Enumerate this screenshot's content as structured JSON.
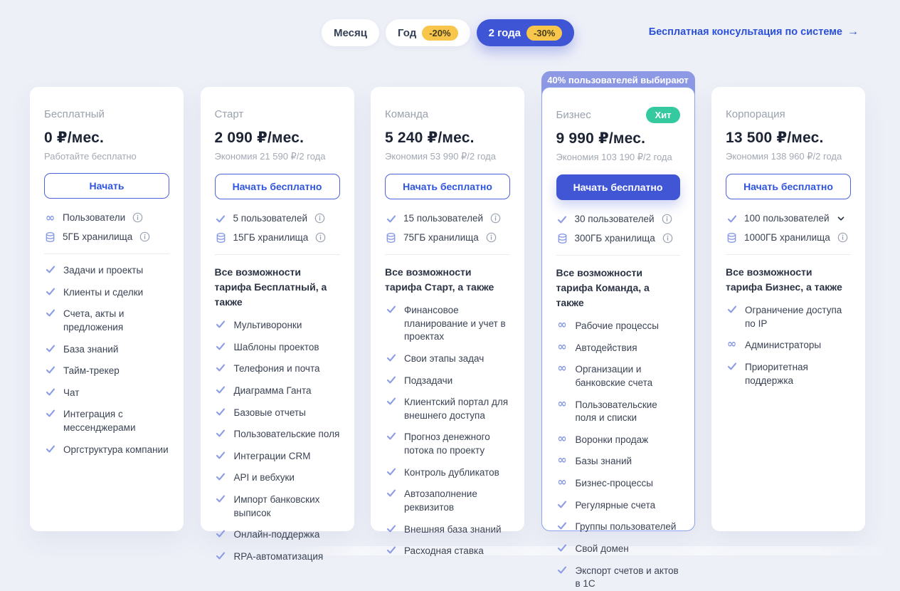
{
  "colors": {
    "background": "#eef0f8",
    "accent_blue": "#3e55d6",
    "link_blue": "#2b50d9",
    "badge_yellow": "#f7c64a",
    "hit_green": "#35c9a0",
    "banner_indigo": "#8d99e4",
    "icon_periwinkle": "#8b9ce5"
  },
  "billing_toggle": {
    "options": [
      {
        "key": "month",
        "label": "Месяц",
        "badge": null,
        "active": false
      },
      {
        "key": "year",
        "label": "Год",
        "badge": "-20%",
        "active": false
      },
      {
        "key": "two-years",
        "label": "2 года",
        "badge": "-30%",
        "active": true
      }
    ]
  },
  "consult_link": {
    "label": "Бесплатная консультация по системе",
    "arrow": "→"
  },
  "plans": [
    {
      "key": "free",
      "name": "Бесплатный",
      "price": "0 ₽/мес.",
      "subtitle": "Работайте бесплатно",
      "button": {
        "label": "Начать",
        "variant": "outline"
      },
      "popular": false,
      "banner": null,
      "hit_badge": null,
      "resources": [
        {
          "icon": "infinity",
          "label": "Пользователи",
          "trailing": "info"
        },
        {
          "icon": "database",
          "label": "5ГБ хранилища",
          "trailing": "info"
        }
      ],
      "features_header": null,
      "features": [
        {
          "icon": "check",
          "label": "Задачи и проекты"
        },
        {
          "icon": "check",
          "label": "Клиенты и сделки"
        },
        {
          "icon": "check",
          "label": "Счета, акты и предложения"
        },
        {
          "icon": "check",
          "label": "База знаний"
        },
        {
          "icon": "check",
          "label": "Тайм-трекер"
        },
        {
          "icon": "check",
          "label": "Чат"
        },
        {
          "icon": "check",
          "label": "Интеграция с мессенджерами"
        },
        {
          "icon": "check",
          "label": "Оргструктура компании"
        }
      ]
    },
    {
      "key": "start",
      "name": "Старт",
      "price": "2 090 ₽/мес.",
      "subtitle": "Экономия 21 590 ₽/2 года",
      "button": {
        "label": "Начать бесплатно",
        "variant": "outline"
      },
      "popular": false,
      "banner": null,
      "hit_badge": null,
      "resources": [
        {
          "icon": "check",
          "label": "5 пользователей",
          "trailing": "info"
        },
        {
          "icon": "database",
          "label": "15ГБ хранилища",
          "trailing": "info"
        }
      ],
      "features_header": "Все возможности тарифа Бесплатный, а также",
      "features": [
        {
          "icon": "check",
          "label": "Мультиворонки"
        },
        {
          "icon": "check",
          "label": "Шаблоны проектов"
        },
        {
          "icon": "check",
          "label": "Телефония и почта"
        },
        {
          "icon": "check",
          "label": "Диаграмма Ганта"
        },
        {
          "icon": "check",
          "label": "Базовые отчеты"
        },
        {
          "icon": "check",
          "label": "Пользовательские поля"
        },
        {
          "icon": "check",
          "label": "Интеграции CRM"
        },
        {
          "icon": "check",
          "label": "API и вебхуки"
        },
        {
          "icon": "check",
          "label": "Импорт банковских выписок"
        },
        {
          "icon": "check",
          "label": "Онлайн-поддержка"
        },
        {
          "icon": "check",
          "label": "RPA-автоматизация"
        }
      ]
    },
    {
      "key": "team",
      "name": "Команда",
      "price": "5 240 ₽/мес.",
      "subtitle": "Экономия 53 990 ₽/2 года",
      "button": {
        "label": "Начать бесплатно",
        "variant": "outline"
      },
      "popular": false,
      "banner": null,
      "hit_badge": null,
      "resources": [
        {
          "icon": "check",
          "label": "15 пользователей",
          "trailing": "info"
        },
        {
          "icon": "database",
          "label": "75ГБ хранилища",
          "trailing": "info"
        }
      ],
      "features_header": "Все возможности тарифа Старт, а также",
      "features": [
        {
          "icon": "check",
          "label": "Финансовое планирование и учет в проектах"
        },
        {
          "icon": "check",
          "label": "Свои этапы задач"
        },
        {
          "icon": "check",
          "label": "Подзадачи"
        },
        {
          "icon": "check",
          "label": "Клиентский портал для внешнего доступа"
        },
        {
          "icon": "check",
          "label": "Прогноз денежного потока по проекту"
        },
        {
          "icon": "check",
          "label": "Контроль дубликатов"
        },
        {
          "icon": "check",
          "label": "Автозаполнение реквизитов"
        },
        {
          "icon": "check",
          "label": "Внешняя база знаний"
        },
        {
          "icon": "check",
          "label": "Расходная ставка"
        }
      ]
    },
    {
      "key": "business",
      "name": "Бизнес",
      "price": "9 990 ₽/мес.",
      "subtitle": "Экономия 103 190 ₽/2 года",
      "button": {
        "label": "Начать бесплатно",
        "variant": "solid"
      },
      "popular": true,
      "banner": "40% пользователей выбирают",
      "hit_badge": "Хит",
      "resources": [
        {
          "icon": "check",
          "label": "30 пользователей",
          "trailing": "info"
        },
        {
          "icon": "database",
          "label": "300ГБ хранилища",
          "trailing": "info"
        }
      ],
      "features_header": "Все возможности тарифа Команда, а также",
      "features": [
        {
          "icon": "infinity",
          "label": "Рабочие процессы"
        },
        {
          "icon": "infinity",
          "label": "Автодействия"
        },
        {
          "icon": "infinity",
          "label": "Организации и банковские счета"
        },
        {
          "icon": "infinity",
          "label": "Пользовательские поля и списки"
        },
        {
          "icon": "infinity",
          "label": "Воронки продаж"
        },
        {
          "icon": "infinity",
          "label": "Базы знаний"
        },
        {
          "icon": "infinity",
          "label": "Бизнес-процессы"
        },
        {
          "icon": "check",
          "label": "Регулярные счета"
        },
        {
          "icon": "check",
          "label": "Группы пользователей"
        },
        {
          "icon": "check",
          "label": "Свой домен"
        },
        {
          "icon": "check",
          "label": "Экспорт счетов и актов в 1С"
        }
      ]
    },
    {
      "key": "corporation",
      "name": "Корпорация",
      "price": "13 500 ₽/мес.",
      "subtitle": "Экономия 138 960 ₽/2 года",
      "button": {
        "label": "Начать бесплатно",
        "variant": "outline"
      },
      "popular": false,
      "banner": null,
      "hit_badge": null,
      "resources": [
        {
          "icon": "check",
          "label": "100 пользователей",
          "trailing": "chevron-down"
        },
        {
          "icon": "database",
          "label": "1000ГБ хранилища",
          "trailing": "info"
        }
      ],
      "features_header": "Все возможности тарифа Бизнес, а также",
      "features": [
        {
          "icon": "check",
          "label": "Ограничение доступа по IP"
        },
        {
          "icon": "infinity",
          "label": "Администраторы"
        },
        {
          "icon": "check",
          "label": "Приоритетная поддержка"
        }
      ]
    }
  ]
}
